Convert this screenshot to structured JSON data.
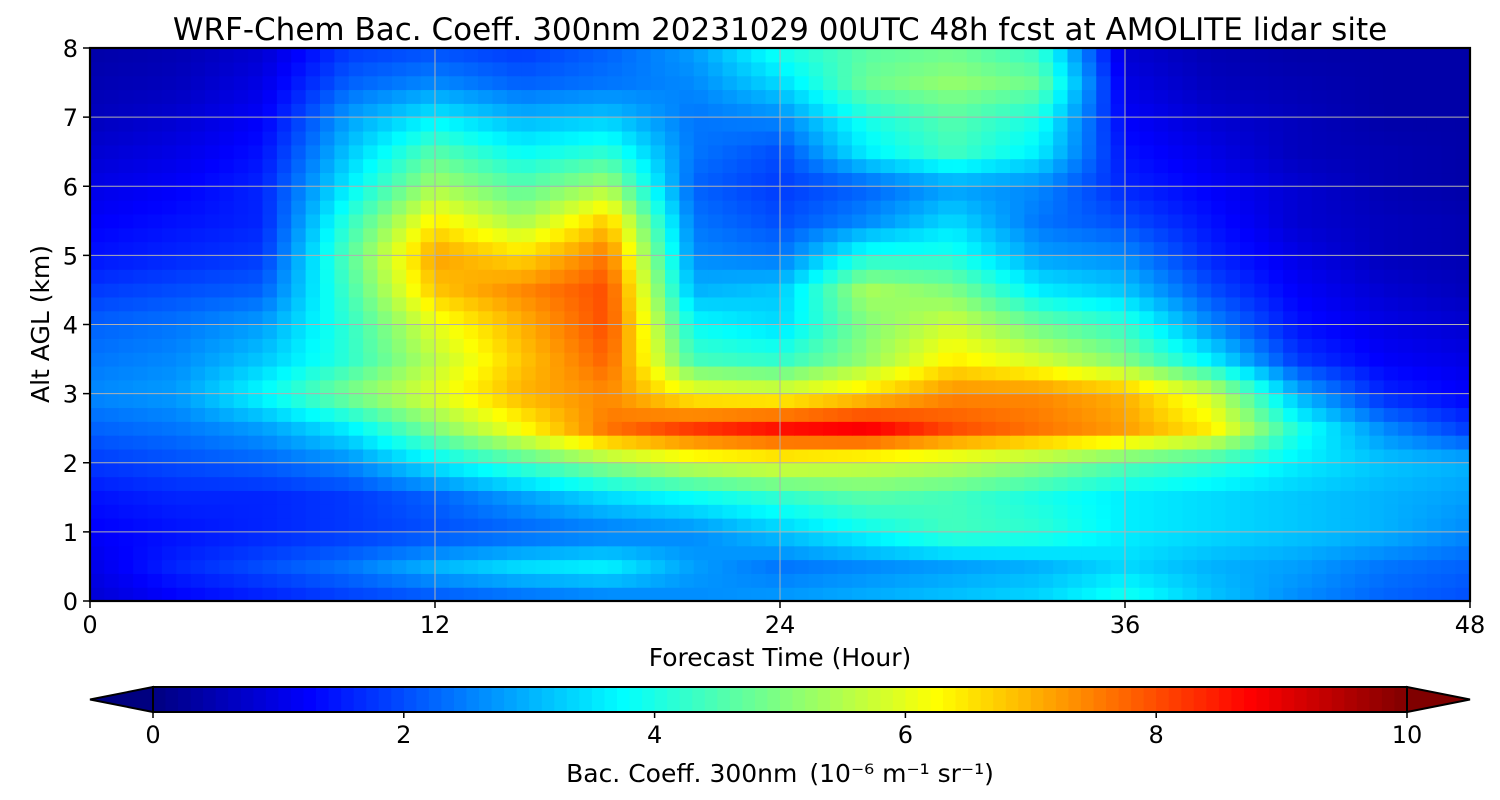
{
  "chart_data": {
    "type": "heatmap",
    "title": "WRF-Chem Bac. Coeff. 300nm  20231029 00UTC 48h fcst at AMOLITE lidar site",
    "xlabel": "Forecast Time (Hour)",
    "ylabel": "Alt AGL (km)",
    "xlim": [
      0,
      48
    ],
    "ylim": [
      0,
      8
    ],
    "xticks": [
      "0",
      "12",
      "24",
      "36",
      "48"
    ],
    "yticks": [
      "0",
      "1",
      "2",
      "3",
      "4",
      "5",
      "6",
      "7",
      "8"
    ],
    "grid": true,
    "colormap": "jet",
    "colorbar": {
      "label_main": "Bac. Coeff. 300nm",
      "label_units": "(10⁻⁶ m⁻¹ sr⁻¹)",
      "range": [
        0,
        10
      ],
      "ticks": [
        "0",
        "2",
        "4",
        "6",
        "8",
        "10"
      ],
      "extend": "both",
      "orientation": "horizontal"
    },
    "x": [
      0,
      3,
      6,
      9,
      12,
      15,
      18,
      21,
      24,
      27,
      30,
      33,
      36,
      39,
      42,
      45,
      48
    ],
    "y": [
      0,
      0.5,
      1,
      1.5,
      2,
      2.5,
      3,
      3.5,
      4,
      4.5,
      5,
      5.5,
      6,
      6.5,
      7,
      7.5,
      8
    ],
    "z": [
      [
        0.8,
        1.2,
        1.5,
        1.8,
        2.0,
        2.2,
        2.4,
        2.6,
        2.8,
        3.0,
        3.2,
        3.4,
        4.0,
        3.2,
        2.6,
        2.2,
        2.0
      ],
      [
        1.0,
        1.6,
        2.0,
        2.4,
        3.0,
        3.4,
        3.6,
        2.8,
        2.4,
        2.6,
        2.8,
        3.0,
        3.4,
        3.0,
        2.8,
        2.4,
        2.2
      ],
      [
        1.2,
        1.4,
        1.6,
        1.8,
        2.0,
        2.2,
        2.4,
        2.6,
        3.2,
        3.8,
        4.4,
        4.2,
        3.6,
        3.4,
        3.2,
        3.0,
        2.6
      ],
      [
        1.4,
        1.6,
        1.6,
        1.8,
        2.2,
        2.8,
        3.4,
        3.8,
        4.2,
        4.6,
        4.4,
        4.0,
        3.6,
        3.4,
        3.2,
        3.0,
        2.8
      ],
      [
        1.8,
        2.0,
        2.2,
        2.6,
        3.6,
        4.4,
        5.2,
        5.8,
        6.0,
        5.8,
        5.6,
        5.2,
        4.6,
        4.2,
        3.6,
        3.2,
        3.0
      ],
      [
        2.2,
        2.4,
        2.8,
        3.6,
        5.0,
        6.2,
        7.6,
        8.2,
        8.6,
        8.8,
        8.0,
        7.6,
        7.2,
        6.4,
        4.0,
        2.6,
        1.8
      ],
      [
        2.6,
        2.8,
        3.8,
        5.0,
        6.0,
        7.0,
        7.4,
        6.2,
        6.0,
        6.6,
        7.4,
        7.4,
        7.0,
        5.8,
        3.0,
        1.6,
        1.2
      ],
      [
        2.4,
        2.6,
        3.2,
        4.2,
        5.6,
        6.8,
        7.8,
        4.4,
        4.2,
        5.2,
        6.4,
        5.8,
        5.0,
        3.6,
        1.8,
        1.2,
        1.0
      ],
      [
        2.2,
        2.4,
        2.8,
        4.2,
        6.0,
        7.0,
        8.0,
        3.8,
        3.4,
        5.0,
        5.8,
        4.8,
        4.2,
        2.6,
        1.4,
        1.0,
        0.8
      ],
      [
        1.8,
        2.0,
        2.2,
        4.4,
        6.8,
        7.4,
        8.0,
        3.0,
        3.2,
        5.4,
        5.0,
        3.6,
        3.2,
        2.0,
        1.2,
        0.8,
        0.6
      ],
      [
        1.4,
        1.6,
        1.8,
        4.6,
        7.2,
        6.6,
        7.6,
        2.6,
        2.4,
        4.0,
        4.0,
        2.8,
        2.6,
        1.6,
        1.0,
        0.6,
        0.5
      ],
      [
        1.2,
        1.4,
        1.6,
        4.2,
        6.4,
        5.4,
        6.8,
        2.4,
        2.0,
        2.6,
        3.4,
        2.4,
        2.0,
        1.4,
        0.8,
        0.6,
        0.5
      ],
      [
        1.0,
        1.2,
        1.6,
        3.6,
        5.4,
        4.6,
        5.4,
        2.2,
        1.8,
        2.2,
        2.8,
        2.6,
        1.6,
        1.2,
        0.8,
        0.5,
        0.4
      ],
      [
        0.8,
        1.0,
        1.4,
        3.2,
        4.6,
        3.8,
        4.2,
        2.4,
        2.0,
        3.6,
        4.4,
        3.6,
        1.4,
        1.0,
        0.6,
        0.5,
        0.4
      ],
      [
        0.6,
        0.8,
        1.2,
        2.8,
        3.6,
        3.0,
        3.2,
        2.4,
        2.6,
        4.0,
        4.6,
        4.0,
        1.2,
        0.8,
        0.6,
        0.4,
        0.4
      ],
      [
        0.5,
        0.6,
        1.0,
        2.2,
        2.6,
        2.2,
        2.4,
        2.6,
        3.4,
        4.8,
        5.2,
        4.8,
        1.0,
        0.6,
        0.5,
        0.4,
        0.4
      ],
      [
        0.4,
        0.5,
        0.8,
        1.8,
        2.0,
        1.8,
        2.2,
        2.8,
        4.0,
        4.6,
        4.8,
        4.2,
        0.8,
        0.5,
        0.4,
        0.4,
        0.4
      ]
    ]
  }
}
